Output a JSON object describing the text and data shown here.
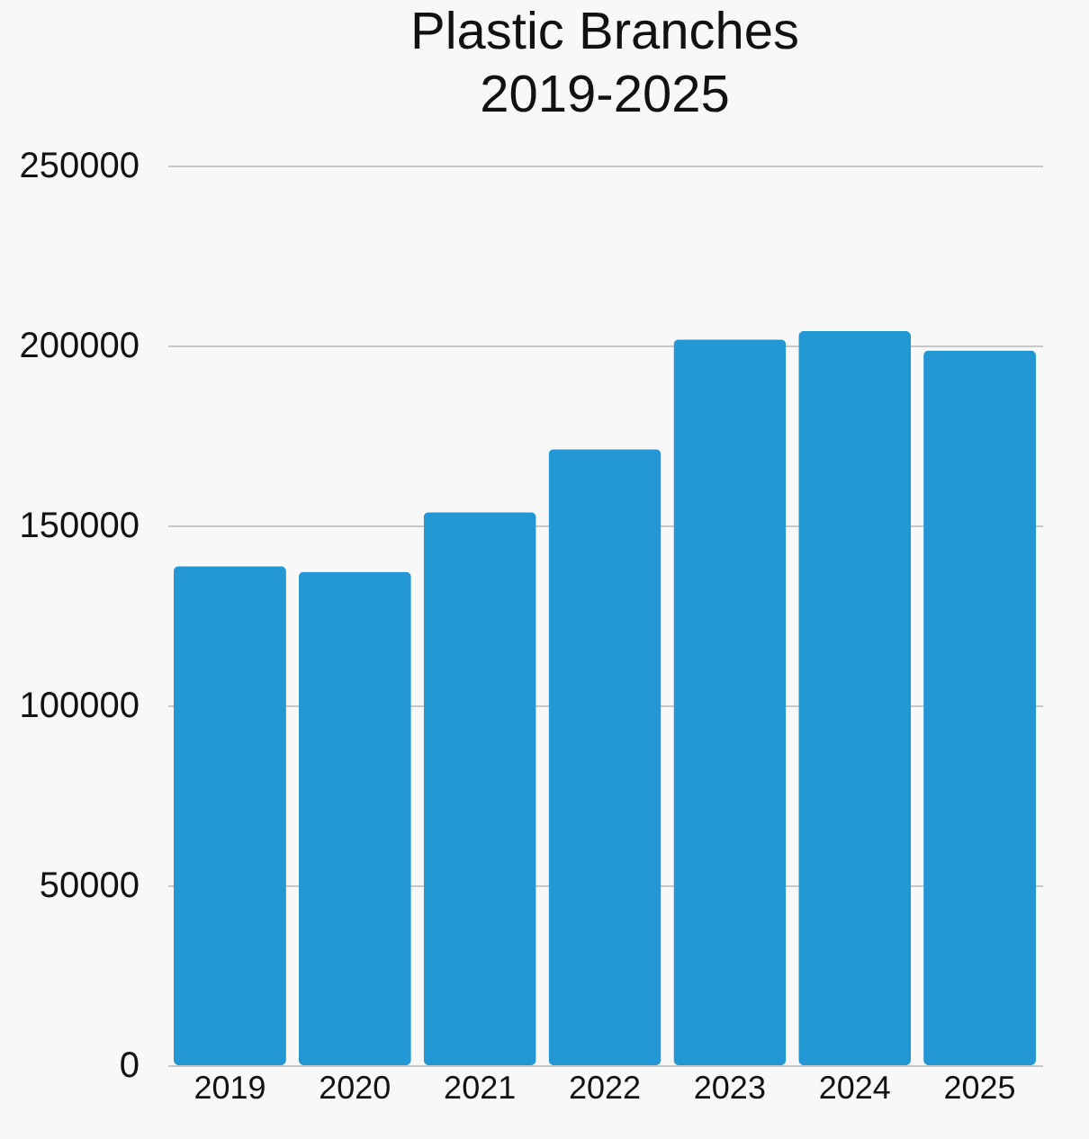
{
  "chart_data": {
    "type": "bar",
    "title": "Plastic Branches\n2019-2025",
    "categories": [
      "2019",
      "2020",
      "2021",
      "2022",
      "2023",
      "2024",
      "2025"
    ],
    "values": [
      138700,
      137100,
      153700,
      171200,
      201700,
      204000,
      198600
    ],
    "color": "#2297d4",
    "ylim": [
      0,
      250000
    ],
    "yticks": [
      0,
      50000,
      100000,
      150000,
      200000,
      250000
    ],
    "grid": "y"
  }
}
